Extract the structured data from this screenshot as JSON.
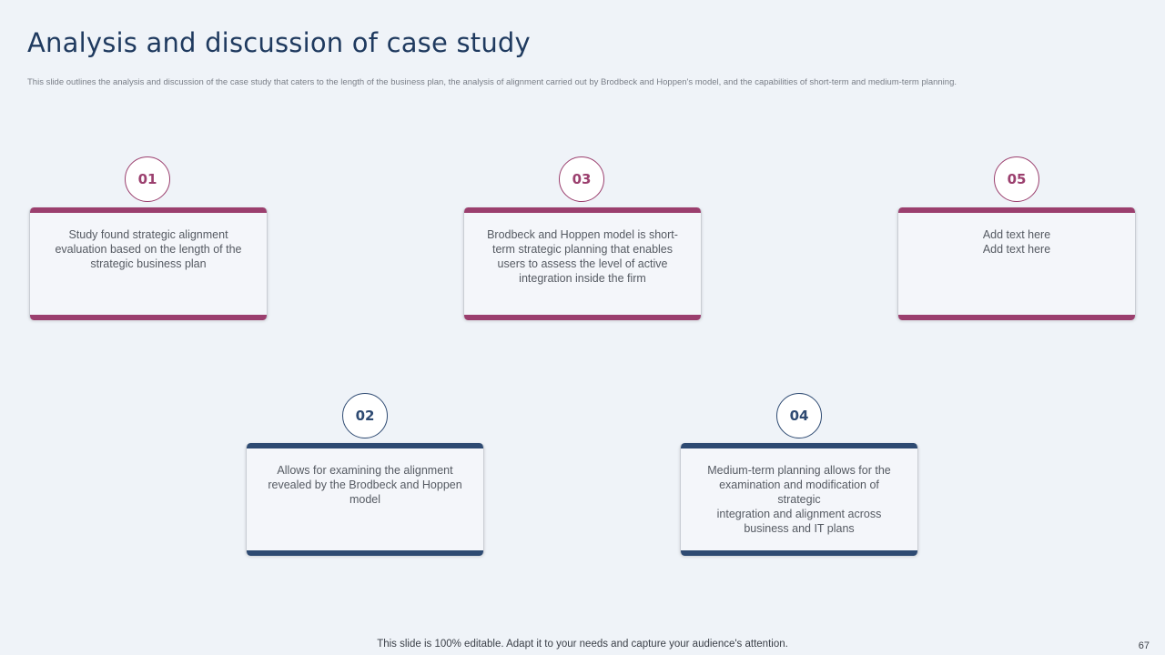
{
  "title": "Analysis and discussion of case study",
  "subtitle": "This slide outlines the analysis and discussion of the case study that caters to the length  of the business plan, the analysis of alignment  carried out by Brodbeck and Hoppen's model,  and the capabilities of short-term and medium-term planning.",
  "steps": [
    {
      "number": "01",
      "lines": [
        "Study found  strategic alignment",
        "evaluation  based on the length of the",
        "strategic business plan"
      ]
    },
    {
      "number": "02",
      "lines": [
        "Allows for examining the alignment",
        "revealed  by the Brodbeck and Hoppen",
        "model"
      ]
    },
    {
      "number": "03",
      "lines": [
        "Brodbeck and Hoppen  model is short-",
        "term strategic planning  that enables",
        "users to assess the level  of active",
        "integration  inside the firm"
      ]
    },
    {
      "number": "04",
      "lines": [
        "Medium-term  planning  allows for the",
        "examination  and modification  of strategic",
        "integration  and alignment  across",
        "business and IT plans"
      ]
    },
    {
      "number": "05",
      "lines": [
        "Add text here",
        "Add text here"
      ]
    }
  ],
  "footer": "This slide is 100% editable. Adapt it to your needs and capture your audience's attention.",
  "page_number": "67",
  "colors": {
    "accent_odd": "#9b3f6e",
    "accent_even": "#2e4a72",
    "title": "#1f3a5f",
    "background": "#eff3f8"
  }
}
